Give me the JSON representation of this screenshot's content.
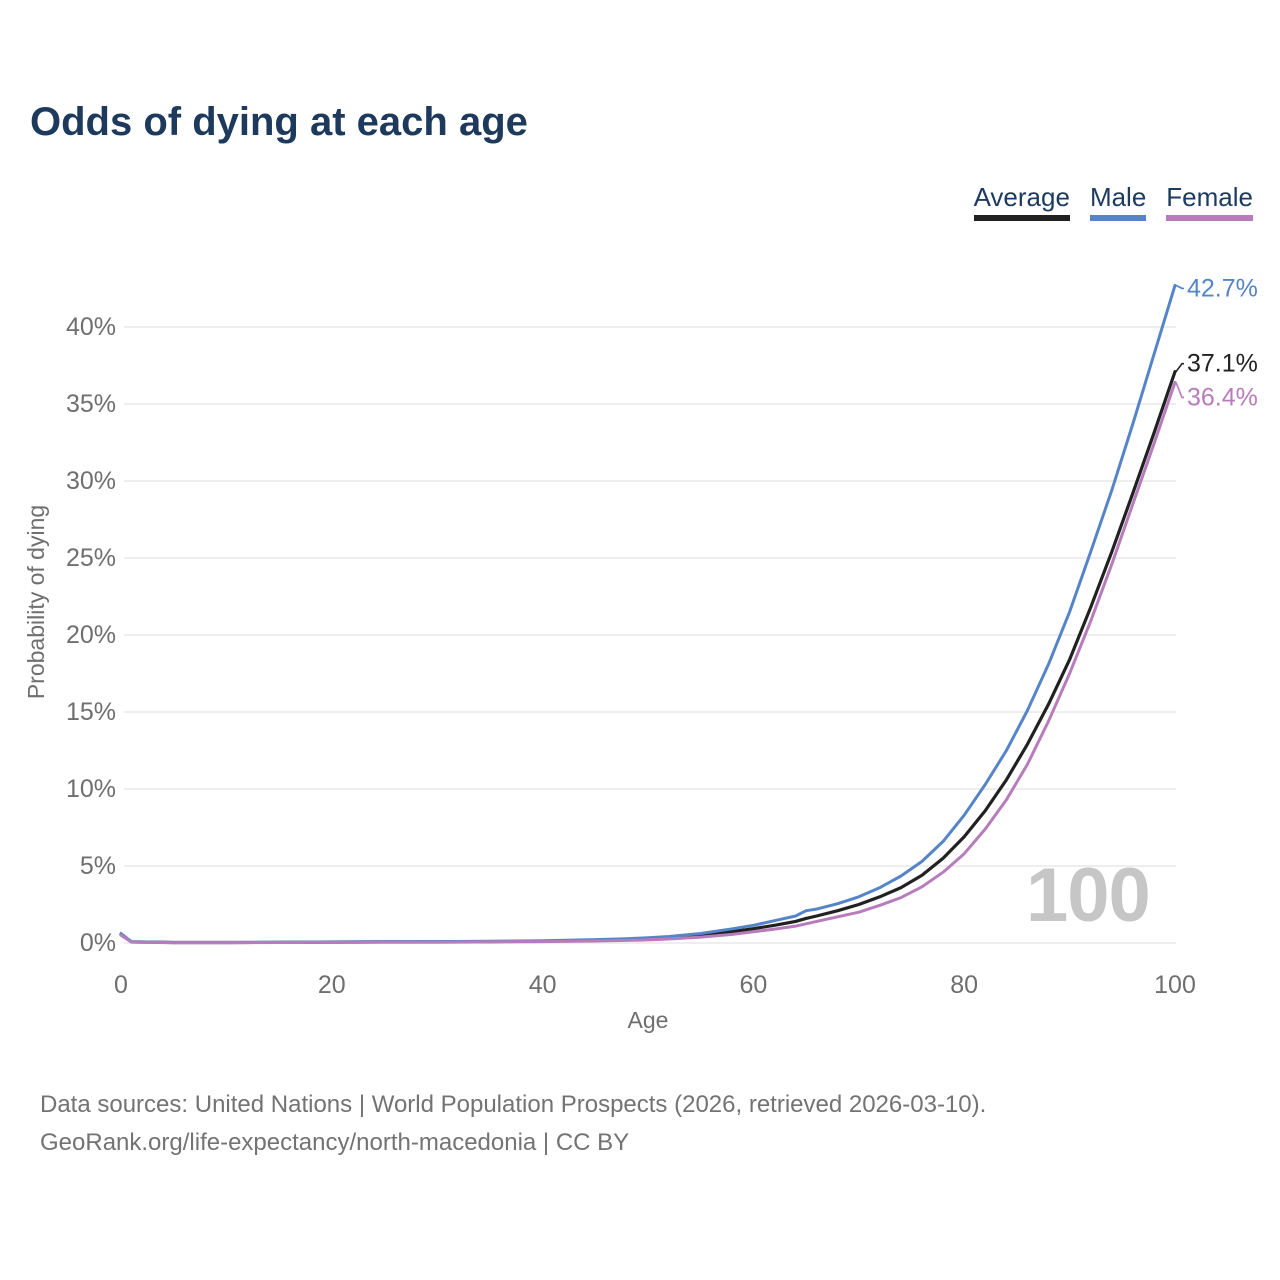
{
  "title": "Odds of dying at each age",
  "legend": {
    "items": [
      {
        "label": "Average",
        "color": "#212121"
      },
      {
        "label": "Male",
        "color": "#5585c8"
      },
      {
        "label": "Female",
        "color": "#b87cbc"
      }
    ]
  },
  "watermark": "100",
  "footer": {
    "line1": "Data sources: United Nations | World Population Prospects (2026, retrieved 2026-03-10).",
    "line2": "GeoRank.org/life-expectancy/north-macedonia | CC BY"
  },
  "chart_data": {
    "type": "line",
    "title": "Odds of dying at each age",
    "xlabel": "Age",
    "ylabel": "Probability of dying",
    "xlim": [
      0,
      100
    ],
    "ylim": [
      0,
      43
    ],
    "x_ticks": [
      0,
      20,
      40,
      60,
      80,
      100
    ],
    "y_ticks": [
      0,
      5,
      10,
      15,
      20,
      25,
      30,
      35,
      40
    ],
    "y_tick_suffix": "%",
    "grid": "horizontal",
    "legend_position": "top-right",
    "x": [
      0,
      1,
      5,
      10,
      15,
      20,
      25,
      30,
      35,
      40,
      45,
      48,
      50,
      52,
      55,
      58,
      60,
      62,
      64,
      65,
      66,
      68,
      70,
      72,
      74,
      76,
      78,
      80,
      82,
      84,
      86,
      88,
      90,
      92,
      94,
      96,
      98,
      100
    ],
    "series": [
      {
        "name": "Average",
        "color": "#212121",
        "end_label": "37.1%",
        "end_value": 37.1,
        "values": [
          0.55,
          0.07,
          0.03,
          0.03,
          0.04,
          0.06,
          0.07,
          0.08,
          0.09,
          0.12,
          0.18,
          0.23,
          0.27,
          0.34,
          0.5,
          0.74,
          0.93,
          1.15,
          1.4,
          1.6,
          1.75,
          2.1,
          2.5,
          3.0,
          3.6,
          4.4,
          5.5,
          6.9,
          8.6,
          10.6,
          12.9,
          15.5,
          18.4,
          21.8,
          25.4,
          29.2,
          33.1,
          37.1
        ]
      },
      {
        "name": "Male",
        "color": "#5585c8",
        "end_label": "42.7%",
        "end_value": 42.7,
        "values": [
          0.62,
          0.08,
          0.03,
          0.03,
          0.05,
          0.07,
          0.08,
          0.09,
          0.11,
          0.15,
          0.22,
          0.28,
          0.34,
          0.42,
          0.62,
          0.92,
          1.15,
          1.45,
          1.75,
          2.1,
          2.2,
          2.55,
          3.0,
          3.6,
          4.35,
          5.3,
          6.6,
          8.3,
          10.3,
          12.5,
          15.1,
          18.1,
          21.5,
          25.4,
          29.4,
          33.7,
          38.2,
          42.7
        ]
      },
      {
        "name": "Female",
        "color": "#b87cbc",
        "end_label": "36.4%",
        "end_value": 36.4,
        "values": [
          0.5,
          0.06,
          0.02,
          0.02,
          0.03,
          0.04,
          0.05,
          0.05,
          0.07,
          0.09,
          0.13,
          0.17,
          0.2,
          0.26,
          0.38,
          0.56,
          0.73,
          0.9,
          1.1,
          1.25,
          1.4,
          1.7,
          2.0,
          2.45,
          2.95,
          3.65,
          4.6,
          5.8,
          7.4,
          9.3,
          11.6,
          14.4,
          17.5,
          20.9,
          24.6,
          28.5,
          32.4,
          36.4
        ]
      }
    ]
  }
}
